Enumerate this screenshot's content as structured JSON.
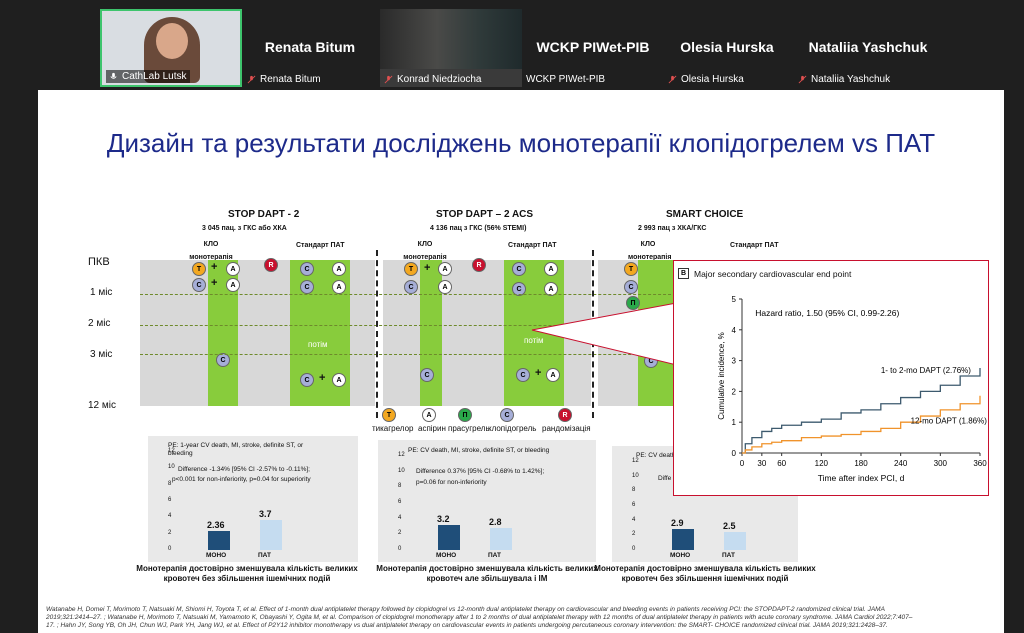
{
  "participants": [
    {
      "name": "CathLab Lutsk",
      "big": ""
    },
    {
      "name": "Renata Bitum",
      "big": "Renata Bitum"
    },
    {
      "name": "Konrad Niedziocha",
      "big": ""
    },
    {
      "name": "WCKP PIWet-PIB",
      "big": "WCKP PIWet-PIB"
    },
    {
      "name": "Olesia Hurska",
      "big": "Olesia Hurska"
    },
    {
      "name": "Nataliia Yashchuk",
      "big": "Nataliia Yashchuk"
    }
  ],
  "slide": {
    "title": "Дизайн та результати досліджень монотерапії клопідогрелем vs ПАТ",
    "row_labels": [
      "ПКВ",
      "1 міс",
      "2 міс",
      "3 міс",
      "12 міс"
    ],
    "studies": [
      {
        "name": "STOP DAPT - 2",
        "sub": "3 045 пац. з ГКС або ХКА",
        "arm_left": "КЛО монотерапія",
        "arm_right": "Стандарт ПАТ",
        "pe": "PE: 1-year CV death, MI, stroke, definite ST, or bleeding",
        "diff": "Difference -1.34% [95% CI -2.57% to -0.11%];",
        "p": "p<0.001 for non-inferiority, p=0.04 for superiority",
        "bar1": 2.36,
        "bar2": 3.7,
        "cat1": "МОНО",
        "cat2": "ПАТ",
        "note": "Монотерапія достовірно зменшувала кількість великих кровотеч без збільшення ішемічних подій"
      },
      {
        "name": "STOP DAPT – 2 ACS",
        "sub": "4 136 пац з ГКС (56% STEMI)",
        "arm_left": "КЛО монотерапія",
        "arm_right": "Стандарт ПАТ",
        "pe": "PE: CV death, MI, stroke, definite ST, or bleeding",
        "diff": "Difference 0.37% [95% CI -0.68% to 1.42%];",
        "p": "p=0.06 for non-inferiority",
        "bar1": 3.2,
        "bar2": 2.8,
        "cat1": "МОНО",
        "cat2": "ПАТ",
        "note": "Монотерапія достовірно зменшувала кількість великих кровотеч але збільшувала і ІМ"
      },
      {
        "name": "SMART CHOICE",
        "sub": "2 993 пац з ХКА/ГКС",
        "arm_left": "КЛО монотерапія",
        "arm_right": "Стандарт ПАТ",
        "pe": "PE: CV death, MI, stroke, definite ST, or bleeding",
        "diff": "Diffe",
        "p": "",
        "bar1": 2.9,
        "bar2": 2.5,
        "cat1": "МОНО",
        "cat2": "ПАТ",
        "note": "Монотерапія достовірно зменшувала кількість великих кровотеч без збільшення ішемічних подій"
      }
    ],
    "then_label": "потім",
    "or_label": "або",
    "legend": [
      {
        "letter": "T",
        "label": "тикагрелор"
      },
      {
        "letter": "A",
        "label": "аспірин"
      },
      {
        "letter": "П",
        "label": "прасугрель"
      },
      {
        "letter": "C",
        "label": "клопідогрель"
      },
      {
        "letter": "R",
        "label": "рандомізація"
      }
    ],
    "axis_ticks": [
      "12",
      "10",
      "8",
      "6",
      "4",
      "2",
      "0"
    ],
    "inset": {
      "panel": "B",
      "title": "Major secondary cardiovascular end point",
      "hr": "Hazard ratio, 1.50 (95% CI, 0.99-2.26)",
      "ylabel": "Cumulative incidence, %",
      "xlabel": "Time after index PCI, d",
      "line1": "1- to 2-mo DAPT (2.76%)",
      "line2": "12-mo DAPT (1.86%)"
    },
    "footnote": [
      "Watanabe H, Domei T, Morimoto T, Natsuaki M, Shiomi H, Toyota T, et al. Effect of 1-month dual antiplatelet therapy followed by clopidogrel vs 12-month dual antiplatelet therapy on cardiovascular and bleeding events in patients receiving PCI: the STOPDAPT-2 randomized clinical trial. JAMA",
      "2019;321:2414–27. ; Watanabe H, Morimoto T, Natsuaki M, Yamamoto K, Obayashi Y, Ogita M, et al. Comparison of clopidogrel monotherapy after 1 to 2 months of dual antiplatelet therapy with 12 months of dual antiplatelet therapy in patients with acute coronary syndrome. JAMA Cardiol 2022;7:407–",
      "17. ; Hahn JY, Song YB, Oh JH, Chun WJ, Park YH, Jang WJ, et al. Effect of P2Y12 inhibitor monotherapy vs dual antiplatelet therapy on cardiovascular events in patients undergoing percutaneous coronary intervention: the SMART- CHOICE randomized clinical trial. JAMA 2019;321:2428–37."
    ]
  },
  "chart_data": {
    "type": "line",
    "title": "Major secondary cardiovascular end point",
    "xlabel": "Time after index PCI, d",
    "ylabel": "Cumulative incidence, %",
    "xlim": [
      0,
      360
    ],
    "ylim": [
      0,
      5
    ],
    "xticks": [
      0,
      30,
      60,
      120,
      180,
      240,
      300,
      360
    ],
    "yticks": [
      0,
      1,
      2,
      3,
      4,
      5
    ],
    "series": [
      {
        "name": "1- to 2-mo DAPT (2.76%)",
        "color": "#3d5a6e",
        "x": [
          0,
          5,
          15,
          30,
          45,
          60,
          90,
          120,
          150,
          180,
          210,
          240,
          270,
          300,
          330,
          360
        ],
        "y": [
          0,
          0.3,
          0.5,
          0.7,
          0.8,
          0.9,
          1.0,
          1.1,
          1.3,
          1.4,
          1.6,
          1.8,
          2.0,
          2.2,
          2.5,
          2.76
        ]
      },
      {
        "name": "12-mo DAPT (1.86%)",
        "color": "#f0932b",
        "x": [
          0,
          5,
          15,
          30,
          45,
          60,
          90,
          120,
          150,
          180,
          210,
          240,
          270,
          300,
          330,
          360
        ],
        "y": [
          0,
          0.1,
          0.2,
          0.3,
          0.35,
          0.4,
          0.5,
          0.55,
          0.6,
          0.7,
          0.8,
          1.0,
          1.2,
          1.4,
          1.6,
          1.86
        ]
      }
    ]
  }
}
